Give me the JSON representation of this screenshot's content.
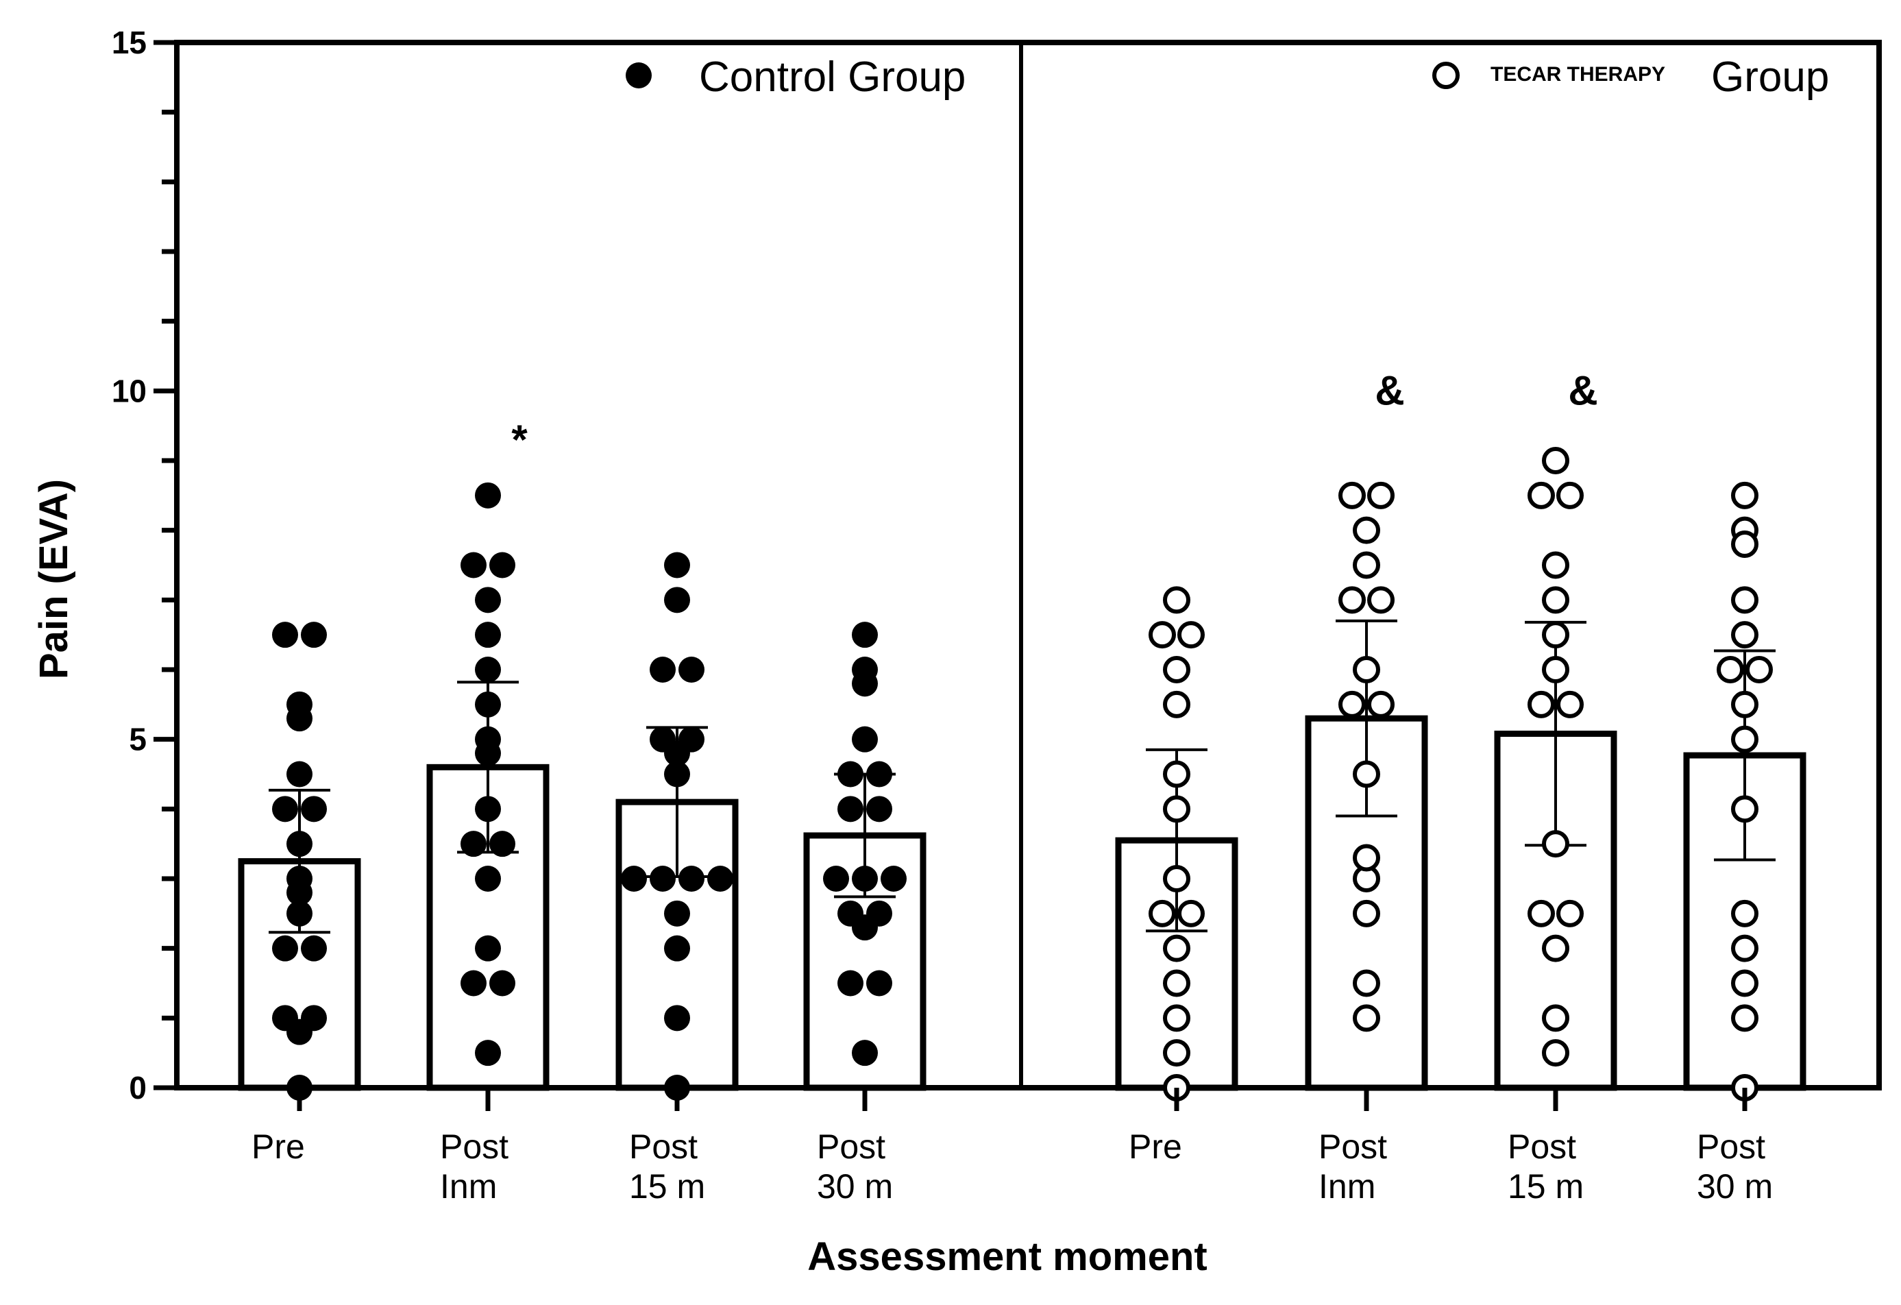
{
  "chart_data": {
    "type": "bar",
    "ylabel": "Pain (EVA)",
    "xlabel": "Assessment moment",
    "ylim": [
      0,
      15
    ],
    "yticks": [
      "0",
      "5",
      "10",
      "15"
    ],
    "categories": [
      [
        "Pre"
      ],
      [
        "Post",
        "Inm"
      ],
      [
        "Post",
        "15 m"
      ],
      [
        "Post",
        "30 m"
      ]
    ],
    "legend": {
      "control_label": "Control Group",
      "tecar_small": "TECAR THERAPY",
      "tecar_group": "Group"
    },
    "series": [
      {
        "name": "Control Group",
        "marker": "filled",
        "means": [
          3.25,
          4.6,
          4.1,
          3.62
        ],
        "sd": [
          1.02,
          1.22,
          1.07,
          0.88
        ],
        "annotations": [
          "",
          "*",
          "",
          ""
        ],
        "points": [
          [
            6.5,
            6.5,
            5.5,
            5.3,
            4.5,
            4.0,
            4.0,
            3.5,
            3.0,
            2.8,
            2.5,
            2.0,
            2.0,
            1.0,
            1.0,
            0.8,
            0.0
          ],
          [
            8.5,
            7.5,
            7.5,
            7.0,
            6.5,
            6.0,
            5.5,
            5.0,
            4.8,
            4.0,
            3.5,
            3.5,
            3.0,
            2.0,
            1.5,
            1.5,
            0.5
          ],
          [
            7.5,
            7.0,
            6.0,
            6.0,
            5.0,
            5.0,
            4.8,
            4.5,
            3.0,
            3.0,
            3.0,
            3.0,
            2.5,
            2.0,
            1.0,
            0.0
          ],
          [
            6.5,
            6.0,
            5.8,
            5.0,
            4.5,
            4.5,
            4.0,
            4.0,
            3.0,
            3.0,
            3.0,
            2.5,
            2.5,
            2.3,
            1.5,
            1.5,
            0.5
          ]
        ]
      },
      {
        "name": "TECAR THERAPY Group",
        "marker": "open",
        "means": [
          3.55,
          5.3,
          5.08,
          4.77
        ],
        "sd": [
          1.3,
          1.4,
          1.6,
          1.5
        ],
        "annotations": [
          "",
          "&",
          "&",
          ""
        ],
        "points": [
          [
            7.0,
            6.5,
            6.5,
            6.0,
            5.5,
            4.5,
            4.0,
            3.0,
            2.5,
            2.5,
            2.0,
            1.5,
            1.0,
            0.5,
            0.0
          ],
          [
            8.5,
            8.5,
            8.0,
            7.5,
            7.0,
            7.0,
            6.0,
            5.5,
            5.5,
            4.5,
            3.3,
            3.0,
            2.5,
            1.5,
            1.0
          ],
          [
            9.0,
            8.5,
            8.5,
            7.5,
            7.0,
            6.5,
            6.0,
            5.5,
            5.5,
            3.5,
            2.5,
            2.5,
            2.0,
            1.0,
            0.5
          ],
          [
            8.5,
            8.0,
            7.8,
            7.0,
            6.5,
            6.0,
            6.0,
            5.5,
            5.0,
            4.0,
            2.5,
            2.0,
            1.5,
            1.0,
            0.0
          ]
        ]
      }
    ]
  }
}
